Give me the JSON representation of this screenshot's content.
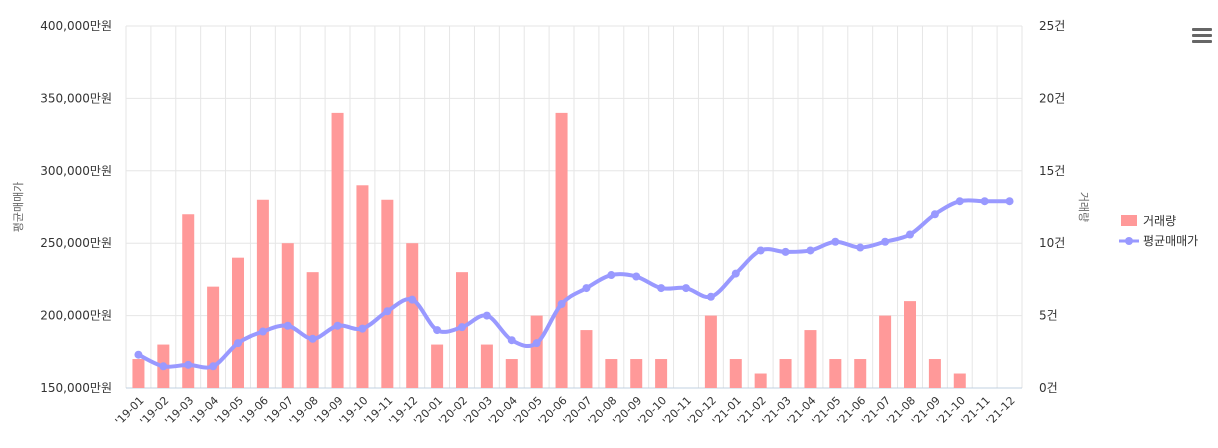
{
  "chart_data": {
    "type": "bar+line",
    "categories": [
      "'19-01",
      "'19-02",
      "'19-03",
      "'19-04",
      "'19-05",
      "'19-06",
      "'19-07",
      "'19-08",
      "'19-09",
      "'19-10",
      "'19-11",
      "'19-12",
      "'20-01",
      "'20-02",
      "'20-03",
      "'20-04",
      "'20-05",
      "'20-06",
      "'20-07",
      "'20-08",
      "'20-09",
      "'20-10",
      "'20-11",
      "'20-12",
      "'21-01",
      "'21-02",
      "'21-03",
      "'21-04",
      "'21-05",
      "'21-06",
      "'21-07",
      "'21-08",
      "'21-09",
      "'21-10",
      "'21-11",
      "'21-12"
    ],
    "series": [
      {
        "name": "거래량",
        "type": "bar",
        "axis": "right",
        "color": "#ff9999",
        "values": [
          2,
          3,
          12,
          7,
          9,
          13,
          10,
          8,
          19,
          14,
          13,
          10,
          3,
          8,
          3,
          2,
          5,
          19,
          4,
          2,
          2,
          2,
          0,
          5,
          2,
          1,
          2,
          4,
          2,
          2,
          5,
          6,
          2,
          1,
          0,
          0
        ]
      },
      {
        "name": "평균매매가",
        "type": "line",
        "axis": "left",
        "color": "#9999ff",
        "values": [
          173000,
          165000,
          166000,
          165000,
          181000,
          189000,
          193000,
          184000,
          193000,
          191000,
          203000,
          211000,
          190000,
          192000,
          200000,
          183000,
          181000,
          208000,
          219000,
          228000,
          227000,
          219000,
          219000,
          213000,
          229000,
          245000,
          244000,
          245000,
          251000,
          247000,
          251000,
          256000,
          270000,
          279000,
          279000,
          279000
        ]
      }
    ],
    "y_left": {
      "label": "평균매매가",
      "min": 150000,
      "max": 400000,
      "ticks": [
        "150,000만원",
        "200,000만원",
        "250,000만원",
        "300,000만원",
        "350,000만원",
        "400,000만원"
      ]
    },
    "y_right": {
      "label": "거래량",
      "min": 0,
      "max": 25,
      "ticks": [
        "0건",
        "5건",
        "10건",
        "15건",
        "20건",
        "25건"
      ]
    },
    "grid": true,
    "legend_position": "right"
  },
  "legend": {
    "bar_label": "거래량",
    "line_label": "평균매매가"
  },
  "icons": {
    "menu": "menu-icon"
  }
}
